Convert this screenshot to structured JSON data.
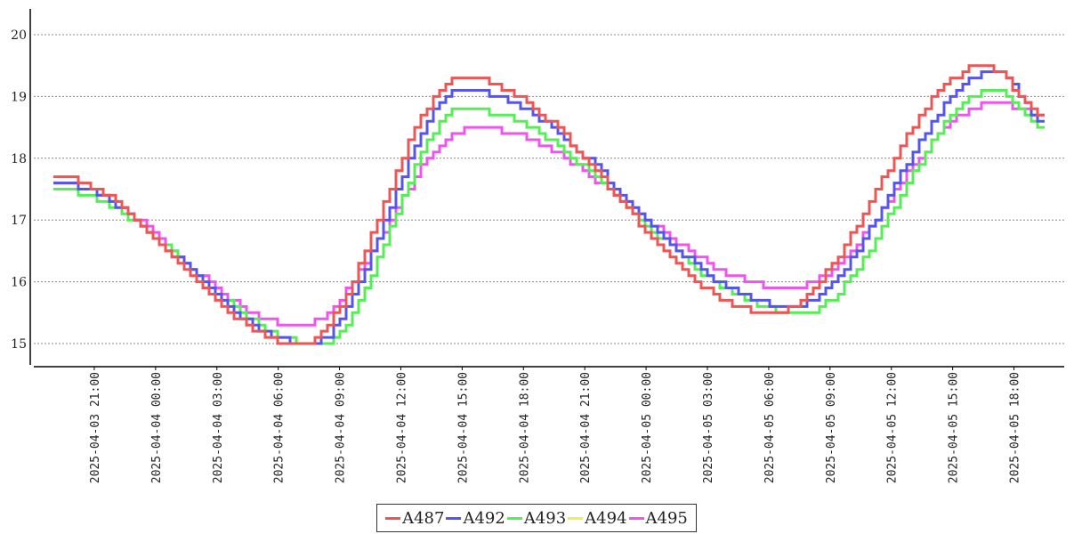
{
  "chart_data": {
    "type": "line",
    "title": "",
    "xlabel": "",
    "ylabel": "",
    "ylim": [
      14.6,
      20.4
    ],
    "yticks": [
      15,
      16,
      17,
      18,
      19,
      20
    ],
    "xlim": [
      "2025-04-03 18:00",
      "2025-04-05 20:30"
    ],
    "xticks": [
      "2025-04-03 21:00",
      "2025-04-04 00:00",
      "2025-04-04 03:00",
      "2025-04-04 06:00",
      "2025-04-04 09:00",
      "2025-04-04 12:00",
      "2025-04-04 15:00",
      "2025-04-04 18:00",
      "2025-04-04 21:00",
      "2025-04-05 00:00",
      "2025-04-05 03:00",
      "2025-04-05 06:00",
      "2025-04-05 09:00",
      "2025-04-05 12:00",
      "2025-04-05 15:00",
      "2025-04-05 18:00"
    ],
    "grid": "horizontal dotted",
    "legend": "bottom-center",
    "step": true,
    "series": [
      {
        "name": "A487",
        "color": "#ee5555",
        "x": [
          "2025-04-03 19:00",
          "2025-04-04 07:00",
          "2025-04-04 15:00",
          "2025-04-05 06:00",
          "2025-04-05 16:30",
          "2025-04-05 19:30"
        ],
        "y": [
          17.7,
          15.0,
          19.3,
          15.5,
          19.5,
          18.7
        ]
      },
      {
        "name": "A492",
        "color": "#5555ee",
        "x": [
          "2025-04-03 19:00",
          "2025-04-04 07:30",
          "2025-04-04 15:00",
          "2025-04-05 07:00",
          "2025-04-05 17:00",
          "2025-04-05 19:30"
        ],
        "y": [
          17.6,
          15.0,
          19.1,
          15.6,
          19.4,
          18.6
        ]
      },
      {
        "name": "A493",
        "color": "#55ee55",
        "x": [
          "2025-04-03 19:00",
          "2025-04-04 08:00",
          "2025-04-04 15:00",
          "2025-04-05 07:30",
          "2025-04-05 17:00",
          "2025-04-05 19:30"
        ],
        "y": [
          17.5,
          15.0,
          18.8,
          15.5,
          19.1,
          18.5
        ]
      },
      {
        "name": "A494",
        "color": "#eeee55",
        "x": [],
        "y": []
      },
      {
        "name": "A495",
        "color": "#ee55ee",
        "x": [
          "2025-04-03 19:00",
          "2025-04-04 07:00",
          "2025-04-04 15:30",
          "2025-04-05 07:00",
          "2025-04-05 17:00",
          "2025-04-05 19:30"
        ],
        "y": [
          17.6,
          15.3,
          18.5,
          15.9,
          18.9,
          18.7
        ]
      }
    ]
  }
}
